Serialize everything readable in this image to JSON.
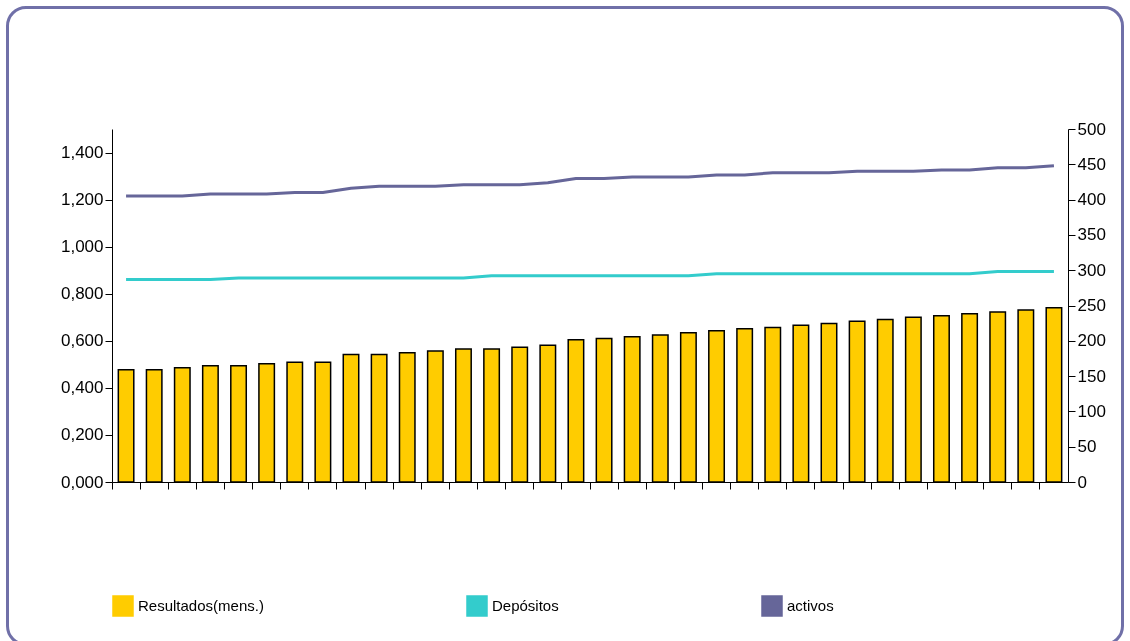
{
  "chart_data": {
    "type": "bar",
    "categories": [
      null,
      null,
      null,
      null,
      null,
      null,
      null,
      null,
      null,
      null,
      null,
      null,
      null,
      null,
      null,
      null,
      null,
      null,
      null,
      null,
      null,
      null,
      null,
      null,
      null,
      null,
      null,
      null,
      null,
      null,
      null,
      null,
      null,
      null
    ],
    "series": [
      {
        "name": "Resultados(mens.)",
        "color": "#ffcc00",
        "values": [
          0.477,
          0.477,
          0.485,
          0.494,
          0.494,
          0.502,
          0.509,
          0.509,
          0.542,
          0.542,
          0.549,
          0.557,
          0.565,
          0.565,
          0.573,
          0.581,
          0.604,
          0.61,
          0.617,
          0.625,
          0.634,
          0.643,
          0.651,
          0.657,
          0.666,
          0.674,
          0.683,
          0.691,
          0.7,
          0.706,
          0.715,
          0.722,
          0.731,
          0.74
        ]
      },
      {
        "name": "Depósitos",
        "type": "line",
        "axis": "y2",
        "color": "#33cccc",
        "values": [
          287,
          287,
          287,
          287,
          289,
          289,
          289,
          289,
          289,
          289,
          289,
          289,
          289,
          292,
          292,
          292,
          292,
          292,
          292,
          292,
          292,
          295,
          295,
          295,
          295,
          295,
          295,
          295,
          295,
          295,
          295,
          298,
          298,
          298
        ]
      },
      {
        "name": "activos",
        "type": "line",
        "axis": "y2",
        "color": "#666699",
        "values": [
          405,
          405,
          405,
          408,
          408,
          408,
          410,
          410,
          416,
          419,
          419,
          419,
          421,
          421,
          421,
          424,
          430,
          430,
          432,
          432,
          432,
          435,
          435,
          438,
          438,
          438,
          440,
          440,
          440,
          442,
          442,
          445,
          445,
          448
        ]
      }
    ],
    "ylim": [
      0,
      1.5
    ],
    "yticks": [
      {
        "value": 0,
        "label": "0,000"
      },
      {
        "value": 0.2,
        "label": "0,200"
      },
      {
        "value": 0.4,
        "label": "0,400"
      },
      {
        "value": 0.6,
        "label": "0,600"
      },
      {
        "value": 0.8,
        "label": "0,800"
      },
      {
        "value": 1.0,
        "label": "1,000"
      },
      {
        "value": 1.2,
        "label": "1,200"
      },
      {
        "value": 1.4,
        "label": "1,400"
      }
    ],
    "y2lim": [
      0,
      500
    ],
    "y2ticks": [
      0,
      50,
      100,
      150,
      200,
      250,
      300,
      350,
      400,
      450,
      500
    ],
    "tick_labels": "y",
    "grid": false,
    "legend": "bottom"
  }
}
